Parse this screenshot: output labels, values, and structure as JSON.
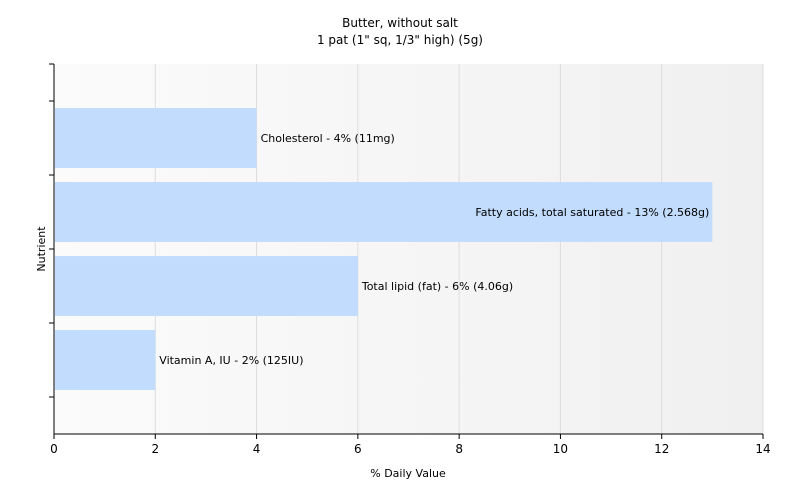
{
  "chart_data": {
    "type": "bar",
    "orientation": "horizontal",
    "title": "Butter, without salt",
    "subtitle": "1 pat (1\" sq, 1/3\" high) (5g)",
    "xlabel": "% Daily Value",
    "ylabel": "Nutrient",
    "xlim": [
      0,
      14
    ],
    "xticks": [
      0,
      2,
      4,
      6,
      8,
      10,
      12,
      14
    ],
    "grid": true,
    "legend": "none",
    "colors": {
      "bar": "#c2dcfd",
      "grid": "#dddddd",
      "axis": "#000000",
      "plot_bg_start": "#fbfbfb",
      "plot_bg_end": "#f0f0f0"
    },
    "bars": [
      {
        "label": "Cholesterol - 4% (11mg)",
        "value": 4
      },
      {
        "label": "Fatty acids, total saturated - 13% (2.568g)",
        "value": 13
      },
      {
        "label": "Total lipid (fat) - 6% (4.06g)",
        "value": 6
      },
      {
        "label": "Vitamin A, IU - 2% (125IU)",
        "value": 2
      }
    ]
  }
}
